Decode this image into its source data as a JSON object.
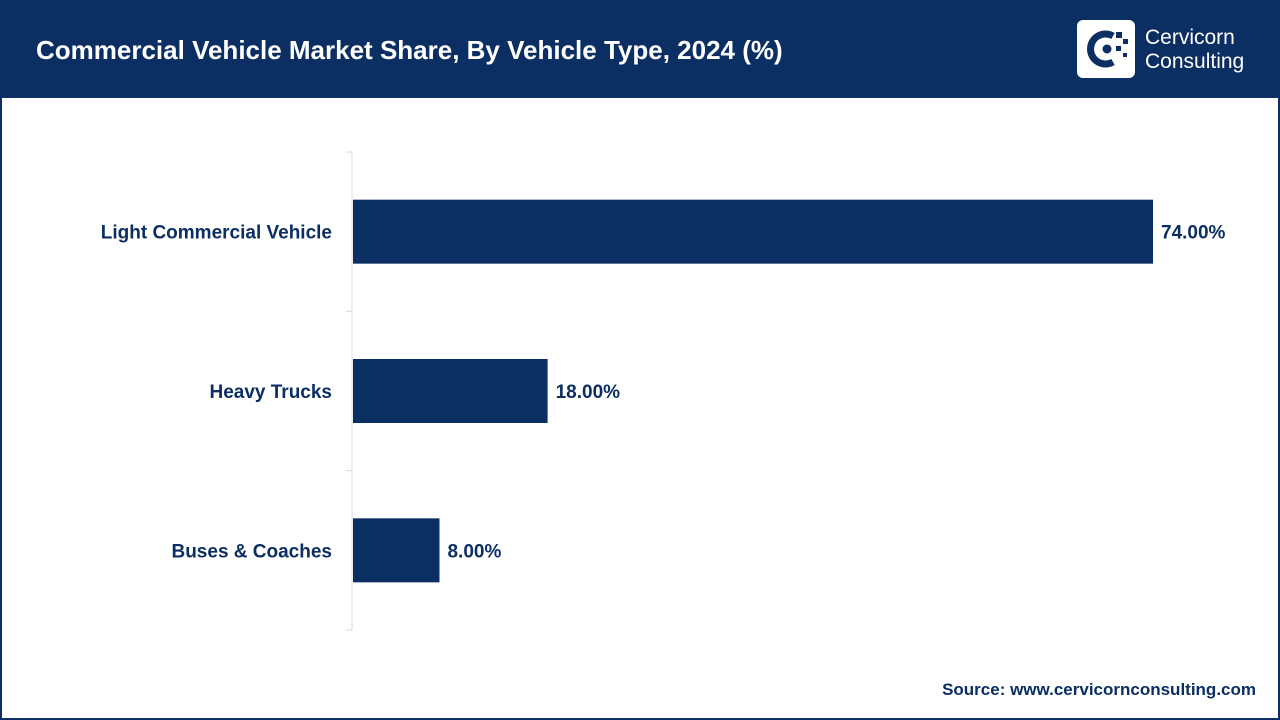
{
  "header": {
    "title": "Commercial Vehicle Market Share, By Vehicle Type, 2024 (%)"
  },
  "logo": {
    "line1": "Cervicorn",
    "line2": "Consulting",
    "icon": "cervicorn-logo-icon"
  },
  "colors": {
    "brand": "#0b2e63",
    "bar": "#0b2e63",
    "background": "#ffffff",
    "axis": "#d9d9d9"
  },
  "chart_data": {
    "type": "bar",
    "orientation": "horizontal",
    "title": "Commercial Vehicle Market Share, By Vehicle Type, 2024 (%)",
    "categories": [
      "Light Commercial Vehicle",
      "Heavy Trucks",
      "Buses & Coaches"
    ],
    "values": [
      74,
      18,
      8
    ],
    "value_labels": [
      "74.00%",
      "18.00%",
      "8.00%"
    ],
    "xlabel": "",
    "ylabel": "",
    "xlim": [
      0,
      80
    ],
    "grid": false,
    "legend": "none"
  },
  "footer": {
    "source": "Source: www.cervicornconsulting.com"
  }
}
